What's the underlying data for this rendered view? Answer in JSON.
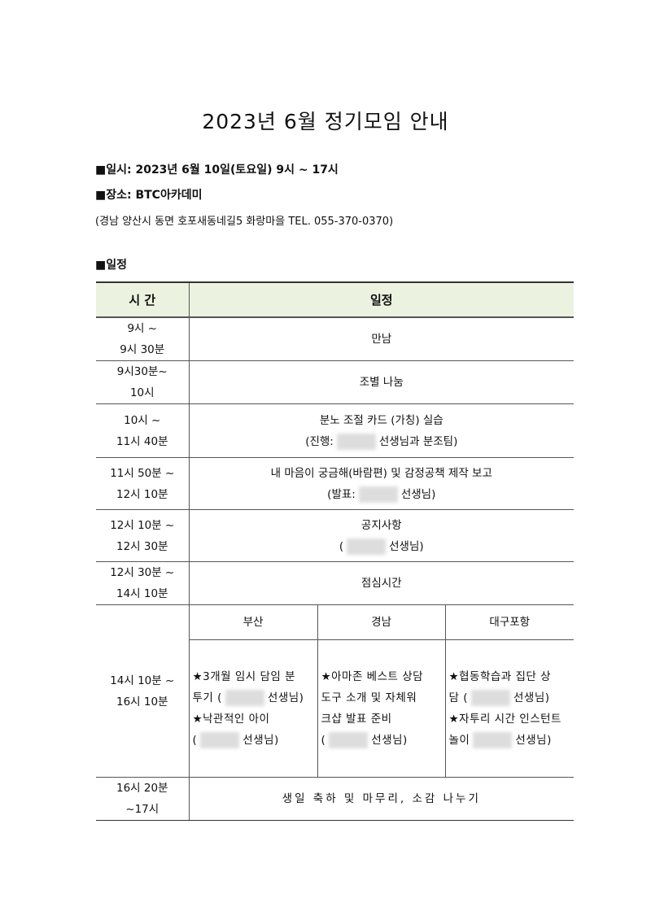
{
  "title": "2023년 6월 정기모임 안내",
  "info": {
    "datetime": "■일시: 2023년 6월 10일(토요일) 9시 ~ 17시",
    "place": "■장소: BTC아카데미",
    "address": "(경남 양산시 동면 호포새동네길5 화랑마을 TEL. 055-370-0370)",
    "schedule_heading": "■일정"
  },
  "table": {
    "headers": [
      "시 간",
      "일정"
    ],
    "rows": [
      {
        "time": [
          "9시 ~",
          "9시 30분"
        ],
        "event": [
          "만남"
        ]
      },
      {
        "time": [
          "9시30분~",
          "10시"
        ],
        "event": [
          "조별 나눔"
        ]
      },
      {
        "time": [
          "10시 ~",
          "11시 40분"
        ],
        "event": [
          "분노 조절 카드 (가칭) 실습"
        ],
        "event2_pre": "(진행:",
        "event2_post": "선생님과 분조팀)"
      },
      {
        "time": [
          "11시 50분 ~",
          "12시 10분"
        ],
        "event": [
          "내 마음이 궁금해(바람편) 및 감정공책 제작 보고"
        ],
        "event2_pre": "(발표:",
        "event2_post": "선생님)"
      },
      {
        "time": [
          "12시 10분 ~",
          "12시 30분"
        ],
        "event": [
          "공지사항"
        ],
        "event2_pre": "(",
        "event2_post": "선생님)"
      },
      {
        "time": [
          "12시 30분 ~",
          "14시 10분"
        ],
        "event": [
          "점심시간"
        ]
      }
    ],
    "breakout": {
      "time": [
        "14시 10분 ~",
        "16시 10분"
      ],
      "groups": [
        {
          "name": "부산",
          "lines": [
            "★3개월 임시 담임 분",
            "투기 (",
            "선생님)",
            "★낙관적인 아이",
            "(",
            "선생님)"
          ]
        },
        {
          "name": "경남",
          "lines": [
            "★아마존 베스트 상담",
            "도구 소개 및 자체워",
            "크샵 발표 준비",
            "(",
            "선생님)"
          ]
        },
        {
          "name": "대구포항",
          "lines": [
            "★협동학습과 집단 상",
            "담 (",
            "선생님)",
            "★자투리 시간 인스턴트",
            "놀이",
            "선생님)"
          ]
        }
      ]
    },
    "last": {
      "time": [
        "16시 20분",
        "~17시"
      ],
      "event": "생일 축하 및 마무리, 소감 나누기"
    }
  },
  "colors": {
    "header_bg": "#ecf2e0"
  }
}
